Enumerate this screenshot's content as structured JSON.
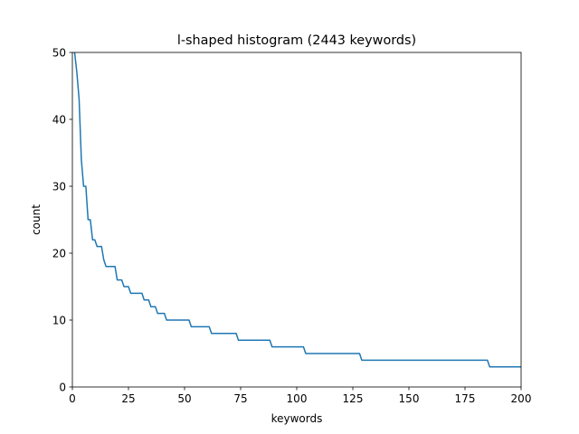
{
  "chart_data": {
    "type": "line",
    "title": "l-shaped histogram (2443 keywords)",
    "xlabel": "keywords",
    "ylabel": "count",
    "xlim": [
      0,
      200
    ],
    "ylim": [
      0,
      50
    ],
    "xticks": [
      0,
      25,
      50,
      75,
      100,
      125,
      150,
      175,
      200
    ],
    "yticks": [
      0,
      10,
      20,
      30,
      40,
      50
    ],
    "grid": false,
    "line_color": "#1f77b4",
    "series": [
      {
        "x": [
          0,
          1,
          2,
          3,
          4,
          5,
          6,
          7,
          8,
          9,
          10,
          11,
          12,
          13,
          14,
          15,
          16,
          17,
          18,
          19,
          20,
          21,
          22,
          23,
          24,
          25,
          26,
          27,
          28,
          29,
          30,
          31,
          32,
          33,
          34,
          35,
          36,
          37,
          38,
          39,
          40,
          41,
          42,
          52,
          53,
          61,
          62,
          73,
          74,
          88,
          89,
          103,
          104,
          128,
          129,
          185,
          186,
          200
        ],
        "values": [
          52,
          50,
          47,
          43,
          34,
          30,
          30,
          25,
          25,
          22,
          22,
          21,
          21,
          21,
          19,
          18,
          18,
          18,
          18,
          18,
          16,
          16,
          16,
          15,
          15,
          15,
          14,
          14,
          14,
          14,
          14,
          14,
          13,
          13,
          13,
          12,
          12,
          12,
          11,
          11,
          11,
          11,
          10,
          10,
          9,
          9,
          8,
          8,
          7,
          7,
          6,
          6,
          5,
          5,
          4,
          4,
          3,
          3
        ]
      }
    ]
  }
}
